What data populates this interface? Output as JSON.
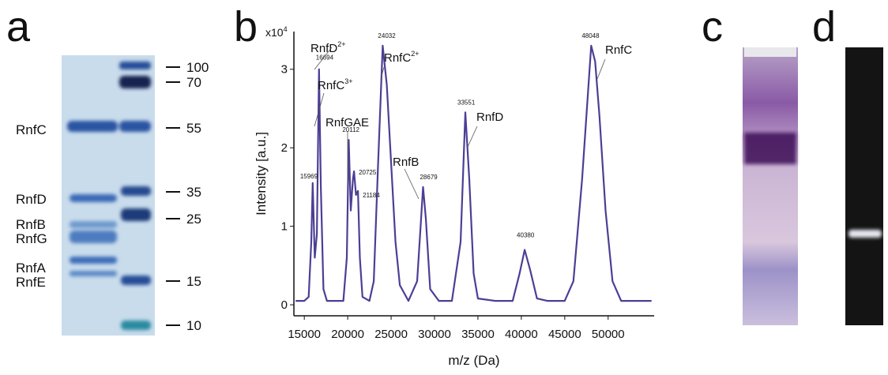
{
  "panel_a": {
    "label": "a",
    "proteins": [
      "RnfC",
      "RnfD",
      "RnfB",
      "RnfG",
      "RnfA",
      "RnfE"
    ],
    "markers": [
      100,
      70,
      55,
      35,
      25,
      15,
      10
    ]
  },
  "chart_data": {
    "type": "line",
    "label": "b",
    "xlabel": "m/z (Da)",
    "ylabel": "Intensity [a.u.]",
    "y_multiplier": "x10",
    "y_multiplier_exp": "4",
    "color": "#4b3f95",
    "x": [
      14000,
      15000,
      15500,
      15800,
      15969,
      16200,
      16450,
      16694,
      16900,
      17200,
      17600,
      18500,
      19500,
      19900,
      20112,
      20350,
      20600,
      20725,
      20950,
      21184,
      21400,
      21700,
      22500,
      23000,
      23500,
      24032,
      24500,
      25000,
      25500,
      26000,
      27000,
      28000,
      28400,
      28679,
      29000,
      29500,
      30500,
      32000,
      33000,
      33551,
      34000,
      34500,
      35000,
      37000,
      39000,
      39800,
      40380,
      41000,
      41800,
      43000,
      45000,
      46000,
      47000,
      48048,
      48500,
      49000,
      49700,
      50500,
      51500,
      55000
    ],
    "values": [
      0.05,
      0.05,
      0.1,
      0.8,
      1.55,
      0.6,
      0.9,
      3.0,
      1.5,
      0.2,
      0.05,
      0.05,
      0.05,
      0.6,
      2.1,
      1.2,
      1.6,
      1.7,
      1.4,
      1.45,
      0.6,
      0.1,
      0.05,
      0.3,
      1.8,
      3.3,
      2.8,
      1.8,
      0.8,
      0.25,
      0.05,
      0.3,
      1.0,
      1.5,
      1.1,
      0.2,
      0.05,
      0.05,
      0.8,
      2.45,
      1.6,
      0.4,
      0.08,
      0.05,
      0.05,
      0.4,
      0.7,
      0.45,
      0.08,
      0.05,
      0.05,
      0.3,
      1.6,
      3.3,
      3.1,
      2.4,
      1.2,
      0.3,
      0.05,
      0.05
    ],
    "xlim": [
      13800,
      55300
    ],
    "ylim": [
      -0.14,
      3.48
    ],
    "xticks": [
      15000,
      20000,
      25000,
      30000,
      35000,
      40000,
      45000,
      50000
    ],
    "yticks": [
      0,
      1,
      2,
      3
    ],
    "peak_labels": [
      15969,
      16694,
      20112,
      20725,
      21184,
      24032,
      28679,
      33551,
      40380,
      48048
    ],
    "annotations": [
      {
        "text": "RnfD",
        "sup": "2+"
      },
      {
        "text": "RnfC",
        "sup": "3+"
      },
      {
        "text": "RnfGAE"
      },
      {
        "text": "RnfC",
        "sup": "2+"
      },
      {
        "text": "RnfB"
      },
      {
        "text": "RnfD"
      },
      {
        "text": "RnfC"
      }
    ]
  },
  "panel_c": {
    "label": "c"
  },
  "panel_d": {
    "label": "d"
  }
}
